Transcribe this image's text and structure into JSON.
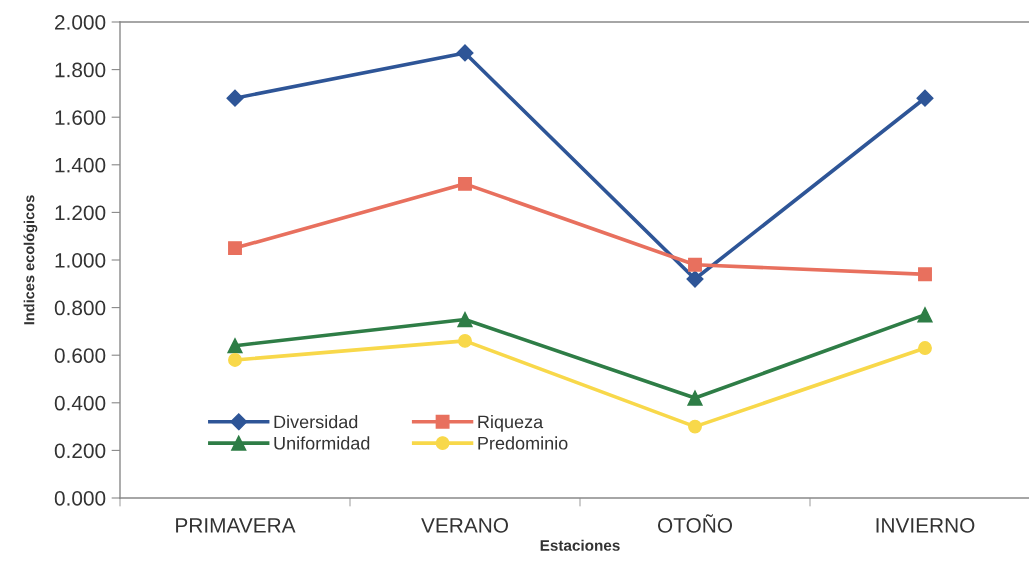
{
  "chart_data": {
    "type": "line",
    "xlabel": "Estaciones",
    "ylabel": "Indices ecológicos",
    "categories": [
      "PRIMAVERA",
      "VERANO",
      "OTOÑO",
      "INVIERNO"
    ],
    "series": [
      {
        "name": "Diversidad",
        "color": "#2e5597",
        "marker": "diamond",
        "values": [
          1.68,
          1.87,
          0.92,
          1.68
        ]
      },
      {
        "name": "Riqueza",
        "color": "#e8705e",
        "marker": "square",
        "values": [
          1.05,
          1.32,
          0.98,
          0.94
        ]
      },
      {
        "name": "Uniformidad",
        "color": "#2e7d46",
        "marker": "triangle",
        "values": [
          0.64,
          0.75,
          0.42,
          0.77
        ]
      },
      {
        "name": "Predominio",
        "color": "#f8d84a",
        "marker": "circle",
        "values": [
          0.58,
          0.66,
          0.3,
          0.63
        ]
      }
    ],
    "ylim": [
      0,
      2
    ],
    "yticks": [
      {
        "value": 0,
        "label": "0.000"
      },
      {
        "value": 0.2,
        "label": "0.200"
      },
      {
        "value": 0.4,
        "label": "0.400"
      },
      {
        "value": 0.6,
        "label": "0.600"
      },
      {
        "value": 0.8,
        "label": "0.800"
      },
      {
        "value": 1.0,
        "label": "1.000"
      },
      {
        "value": 1.2,
        "label": "1.200"
      },
      {
        "value": 1.4,
        "label": "1.400"
      },
      {
        "value": 1.6,
        "label": "1.600"
      },
      {
        "value": 1.8,
        "label": "1.800"
      },
      {
        "value": 2.0,
        "label": "2.000"
      }
    ],
    "grid": false,
    "legend": "bottom left",
    "line_style": "solid"
  }
}
